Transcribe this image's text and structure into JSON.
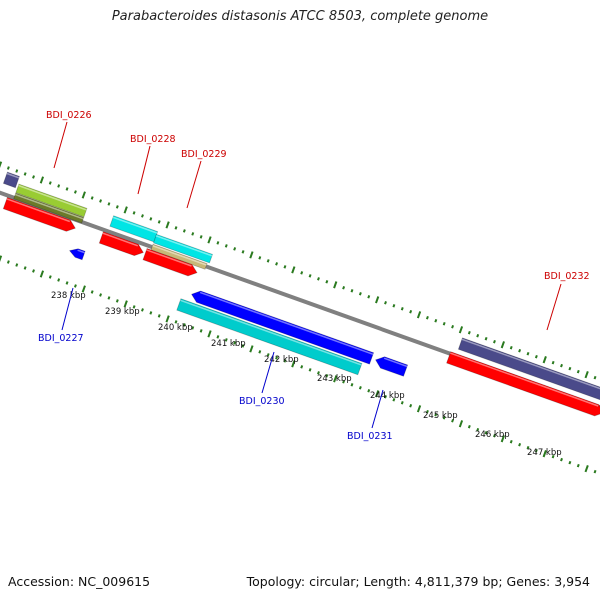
{
  "title": "Parabacteroides distasonis ATCC 8503, complete genome",
  "footer": {
    "accession": "Accession: NC_009615",
    "summary": "Topology: circular; Length: 4,811,379 bp; Genes: 3,954"
  },
  "colors": {
    "backbone": "#808080",
    "tick": "#2a7a1f",
    "forward_label": "#cc0000",
    "reverse_label": "#0000cc"
  },
  "ticks": [
    {
      "label": "238 kbp"
    },
    {
      "label": "239 kbp"
    },
    {
      "label": "240 kbp"
    },
    {
      "label": "241 kbp"
    },
    {
      "label": "242 kbp"
    },
    {
      "label": "243 kbp"
    },
    {
      "label": "244 kbp"
    },
    {
      "label": "245 kbp"
    },
    {
      "label": "246 kbp"
    },
    {
      "label": "247 kbp"
    }
  ],
  "gene_labels": [
    {
      "text": "BDI_0226",
      "strand": "forward"
    },
    {
      "text": "BDI_0227",
      "strand": "reverse"
    },
    {
      "text": "BDI_0228",
      "strand": "forward"
    },
    {
      "text": "BDI_0229",
      "strand": "forward"
    },
    {
      "text": "BDI_0230",
      "strand": "reverse"
    },
    {
      "text": "BDI_0231",
      "strand": "reverse"
    },
    {
      "text": "BDI_0232",
      "strand": "forward"
    }
  ],
  "features": [
    {
      "name": "gene-partial-left",
      "color": "#4a4a8a"
    },
    {
      "name": "gene-bdi0226-cds",
      "color": "#99cc33"
    },
    {
      "name": "gene-bdi0226-gene",
      "color": "#6b7a2a"
    },
    {
      "name": "gene-bdi0226-red",
      "color": "#ff0000"
    },
    {
      "name": "gene-bdi0227",
      "color": "#0000ff"
    },
    {
      "name": "gene-bdi0228-cyan",
      "color": "#00e5e5"
    },
    {
      "name": "gene-bdi0228-red",
      "color": "#ff0000"
    },
    {
      "name": "gene-bdi0229-cyan",
      "color": "#00e5e5"
    },
    {
      "name": "gene-bdi0229-tan",
      "color": "#c8b878"
    },
    {
      "name": "gene-bdi0229-red",
      "color": "#ff0000"
    },
    {
      "name": "gene-bdi0230-blue",
      "color": "#0000ff"
    },
    {
      "name": "gene-bdi0230-cyan",
      "color": "#00cccc"
    },
    {
      "name": "gene-bdi0231",
      "color": "#0000ff"
    },
    {
      "name": "gene-bdi0232-purple",
      "color": "#4a4a8a"
    },
    {
      "name": "gene-bdi0232-red",
      "color": "#ff0000"
    }
  ]
}
